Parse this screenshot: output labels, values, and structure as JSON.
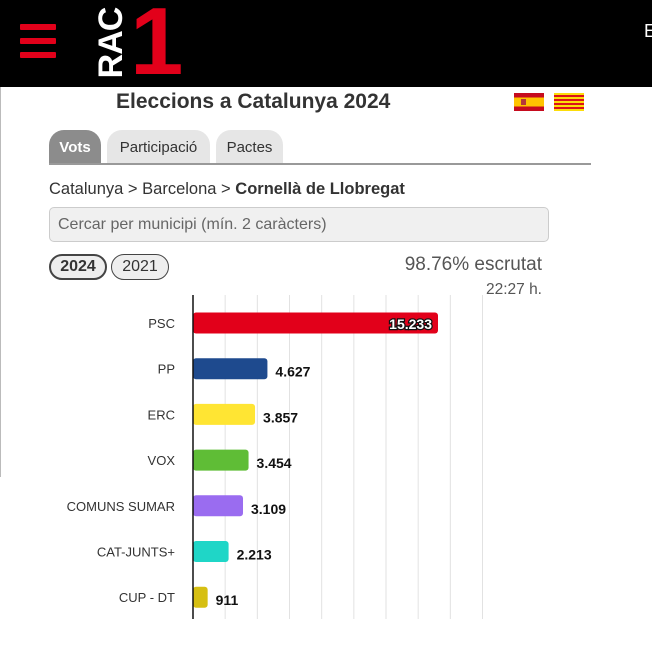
{
  "header": {
    "menu_icon": "hamburger-menu-icon",
    "logo": {
      "letters": "RAC",
      "digit": "1"
    },
    "edge_text": "E",
    "brand_color": "#e2001a"
  },
  "page": {
    "title": "Eleccions a Catalunya 2024",
    "language_flags": [
      "spain-flag-icon",
      "catalonia-flag-icon"
    ]
  },
  "tabs": [
    {
      "label": "Vots",
      "active": true
    },
    {
      "label": "Participació",
      "active": false
    },
    {
      "label": "Pactes",
      "active": false
    }
  ],
  "breadcrumb": {
    "part1": "Catalunya",
    "sep1": ">",
    "part2": "Barcelona",
    "sep2": ">",
    "current": "Cornellà de Llobregat"
  },
  "search": {
    "placeholder": "Cercar per municipi (mín. 2 caràcters)",
    "value": ""
  },
  "years": [
    {
      "label": "2024",
      "selected": true
    },
    {
      "label": "2021",
      "selected": false
    }
  ],
  "status": {
    "scrutiny": "98.76% escrutat",
    "time": "22:27 h."
  },
  "chart_data": {
    "type": "bar",
    "orientation": "horizontal",
    "categories": [
      "PSC",
      "PP",
      "ERC",
      "VOX",
      "COMUNS SUMAR",
      "CAT-JUNTS+",
      "CUP - DT"
    ],
    "values": [
      15233,
      4627,
      3857,
      3454,
      3109,
      2213,
      911
    ],
    "value_labels": [
      "15.233",
      "4.627",
      "3.857",
      "3.454",
      "3.109",
      "2.213",
      "911"
    ],
    "colors": [
      "#e2001a",
      "#1e4a8e",
      "#ffe533",
      "#5fbd36",
      "#9a6cf0",
      "#1fd6c7",
      "#d6bf12"
    ],
    "xlim": [
      0,
      18000
    ],
    "grid": true
  }
}
